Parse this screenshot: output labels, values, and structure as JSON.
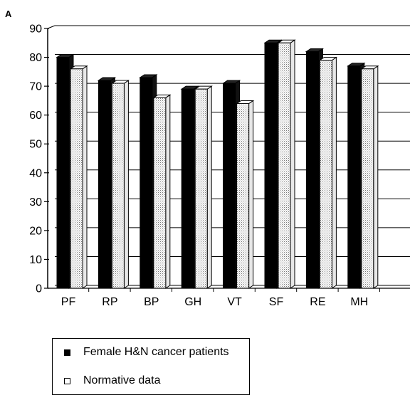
{
  "panel_label": "A",
  "chart_data": {
    "type": "bar",
    "categories": [
      "PF",
      "RP",
      "BP",
      "GH",
      "VT",
      "SF",
      "RE",
      "MH"
    ],
    "series": [
      {
        "name": "Female H&N cancer patients",
        "values": [
          80,
          72,
          73,
          69,
          71,
          85,
          82,
          77
        ],
        "color": "#000000"
      },
      {
        "name": "Normative data",
        "values": [
          76,
          71,
          66,
          69,
          64,
          85,
          79,
          76
        ],
        "color": "#ffffff"
      }
    ],
    "yticks": [
      0,
      10,
      20,
      30,
      40,
      50,
      60,
      70,
      80,
      90
    ],
    "ylim": [
      0,
      90
    ],
    "grid": true,
    "legend": "bottom-left"
  }
}
